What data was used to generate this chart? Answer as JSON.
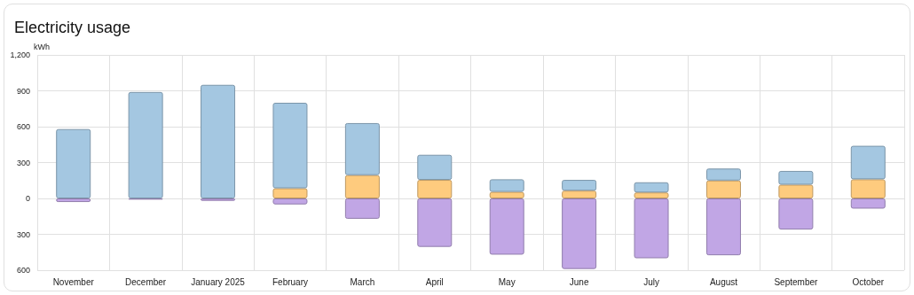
{
  "chart_data": {
    "type": "bar",
    "title": "Electricity usage",
    "ylabel": "kWh",
    "stacked": true,
    "categories": [
      "November",
      "December",
      "January 2025",
      "February",
      "March",
      "April",
      "May",
      "June",
      "July",
      "August",
      "September",
      "October"
    ],
    "series": [
      {
        "color": "#fecb7e",
        "values": [
          null,
          null,
          null,
          85,
          195,
          155,
          55,
          65,
          50,
          150,
          115,
          160
        ]
      },
      {
        "color": "#a4c7e1",
        "values": [
          580,
          890,
          950,
          715,
          435,
          210,
          105,
          90,
          85,
          100,
          115,
          280
        ]
      },
      {
        "color": "#c1a6e5",
        "values": [
          -30,
          -10,
          -20,
          -50,
          -170,
          -405,
          -470,
          -590,
          -500,
          -475,
          -260,
          -85
        ]
      }
    ],
    "ylim": [
      -600,
      1200
    ],
    "yticks": [
      {
        "value": -600,
        "label": "600"
      },
      {
        "value": -300,
        "label": "300"
      },
      0,
      300,
      600,
      900,
      "1,200"
    ],
    "grid": true
  }
}
